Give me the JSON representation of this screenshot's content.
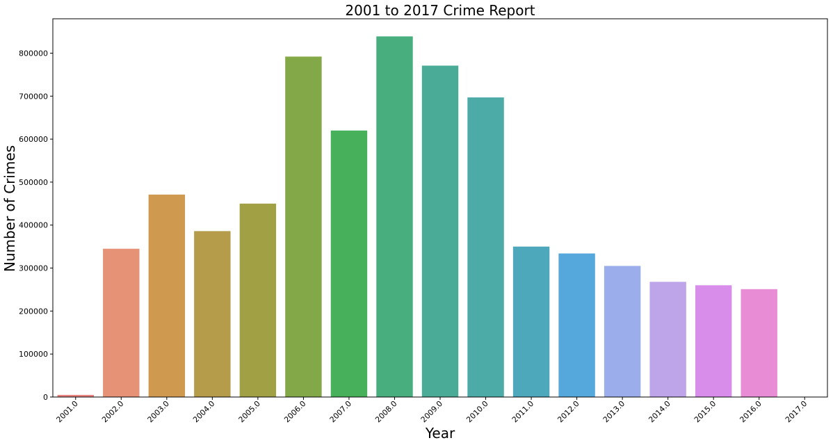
{
  "chart_data": {
    "type": "bar",
    "title": "2001 to 2017 Crime Report",
    "xlabel": "Year",
    "ylabel": "Number of Crimes",
    "categories": [
      "2001.0",
      "2002.0",
      "2003.0",
      "2004.0",
      "2005.0",
      "2006.0",
      "2007.0",
      "2008.0",
      "2009.0",
      "2010.0",
      "2011.0",
      "2012.0",
      "2013.0",
      "2014.0",
      "2015.0",
      "2016.0",
      "2017.0"
    ],
    "values": [
      5000,
      345000,
      471000,
      386000,
      450000,
      792000,
      620000,
      839000,
      771000,
      697000,
      350000,
      334000,
      305000,
      268000,
      260000,
      251000,
      0
    ],
    "colors": [
      "#e8827f",
      "#e69276",
      "#cf9a4f",
      "#b49c4a",
      "#a2a045",
      "#83a847",
      "#47b05a",
      "#48ae7e",
      "#4aac97",
      "#4caaa7",
      "#4da8bb",
      "#55a8dc",
      "#9badea",
      "#bea5ea",
      "#d88deb",
      "#e88dd5",
      "#e88cb4"
    ],
    "ylim": [
      0,
      880000
    ],
    "yticks": [
      0,
      100000,
      200000,
      300000,
      400000,
      500000,
      600000,
      700000,
      800000
    ],
    "grid": false,
    "legend": "none"
  }
}
